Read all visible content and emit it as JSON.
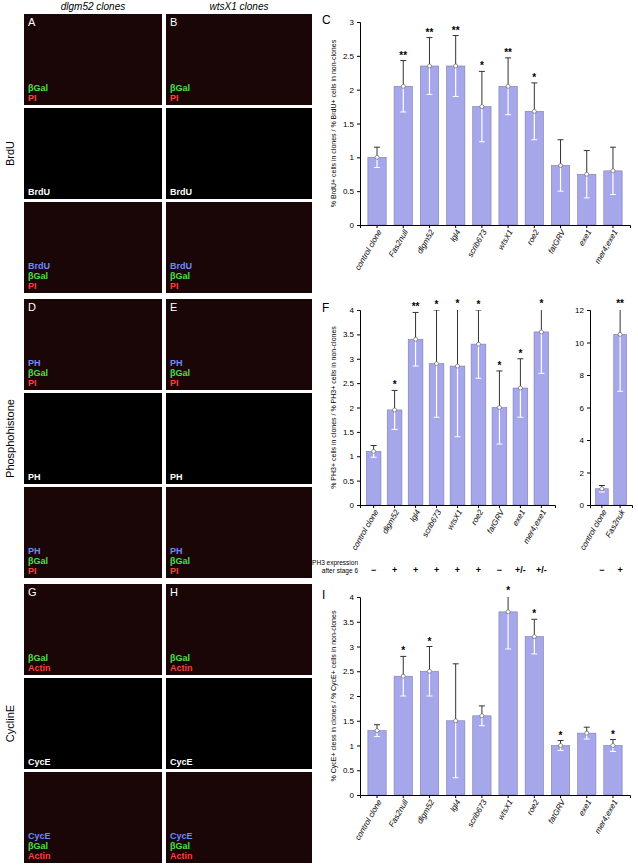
{
  "figure": {
    "column_titles": [
      "dlgm52 clones",
      "wtsX1 clones"
    ],
    "row_titles": [
      "BrdU",
      "Phosphohistone",
      "CyclinE"
    ],
    "panels": [
      {
        "letter": "A",
        "layers": [
          [
            {
              "text": "βGal",
              "color": "#4be04b"
            },
            {
              "text": "PI",
              "color": "#ff4040"
            }
          ],
          [
            {
              "text": "BrdU",
              "color": "#ffffff"
            }
          ],
          [
            {
              "text": "BrdU",
              "color": "#6f8bff"
            },
            {
              "text": "βGal",
              "color": "#4be04b"
            },
            {
              "text": "PI",
              "color": "#ff4040"
            }
          ]
        ]
      },
      {
        "letter": "B",
        "layers": [
          [
            {
              "text": "βGal",
              "color": "#4be04b"
            },
            {
              "text": "PI",
              "color": "#ff4040"
            }
          ],
          [
            {
              "text": "BrdU",
              "color": "#ffffff"
            }
          ],
          [
            {
              "text": "BrdU",
              "color": "#6f8bff"
            },
            {
              "text": "βGal",
              "color": "#4be04b"
            },
            {
              "text": "PI",
              "color": "#ff4040"
            }
          ]
        ]
      },
      {
        "letter": "D",
        "layers": [
          [
            {
              "text": "PH",
              "color": "#6f8bff"
            },
            {
              "text": "βGal",
              "color": "#4be04b"
            },
            {
              "text": "PI",
              "color": "#ff4040"
            }
          ],
          [
            {
              "text": "PH",
              "color": "#ffffff"
            }
          ],
          [
            {
              "text": "PH",
              "color": "#6f8bff"
            },
            {
              "text": "βGal",
              "color": "#4be04b"
            },
            {
              "text": "PI",
              "color": "#ff4040"
            }
          ]
        ]
      },
      {
        "letter": "E",
        "layers": [
          [
            {
              "text": "PH",
              "color": "#6f8bff"
            },
            {
              "text": "βGal",
              "color": "#4be04b"
            },
            {
              "text": "PI",
              "color": "#ff4040"
            }
          ],
          [
            {
              "text": "PH",
              "color": "#ffffff"
            }
          ],
          [
            {
              "text": "PH",
              "color": "#6f8bff"
            },
            {
              "text": "βGal",
              "color": "#4be04b"
            },
            {
              "text": "PI",
              "color": "#ff4040"
            }
          ]
        ]
      },
      {
        "letter": "G",
        "layers": [
          [
            {
              "text": "βGal",
              "color": "#4be04b"
            },
            {
              "text": "Actin",
              "color": "#ff4040"
            }
          ],
          [
            {
              "text": "CycE",
              "color": "#ffffff"
            }
          ],
          [
            {
              "text": "CycE",
              "color": "#6f8bff"
            },
            {
              "text": "βGal",
              "color": "#4be04b"
            },
            {
              "text": "Actin",
              "color": "#ff4040"
            }
          ]
        ]
      },
      {
        "letter": "H",
        "layers": [
          [
            {
              "text": "βGal",
              "color": "#4be04b"
            },
            {
              "text": "Actin",
              "color": "#ff4040"
            }
          ],
          [
            {
              "text": "CycE",
              "color": "#ffffff"
            }
          ],
          [
            {
              "text": "CycE",
              "color": "#6f8bff"
            },
            {
              "text": "βGal",
              "color": "#4be04b"
            },
            {
              "text": "Actin",
              "color": "#ff4040"
            }
          ]
        ]
      }
    ]
  },
  "chart_data": [
    {
      "type": "bar",
      "panel": "C",
      "y_label": "% BrdU+ cells in clones / % BrdU+ cells in non-clones",
      "categories": [
        "control clone",
        "Fas2null",
        "dlgm52",
        "lgl4",
        "scrib673",
        "wtsX1",
        "roe2",
        "fatGRV",
        "exe1",
        "mer4;exe1"
      ],
      "values": [
        1.0,
        2.05,
        2.35,
        2.35,
        1.75,
        2.05,
        1.68,
        0.88,
        0.75,
        0.8
      ],
      "errors": [
        0.15,
        0.38,
        0.42,
        0.45,
        0.52,
        0.42,
        0.42,
        0.38,
        0.35,
        0.35
      ],
      "significance": [
        null,
        "**",
        "**",
        "**",
        "*",
        "**",
        "*",
        null,
        null,
        null
      ],
      "color": "#a6a6ea",
      "ylim": [
        0,
        3
      ],
      "yticks": [
        0,
        0.5,
        1,
        1.5,
        2,
        2.5,
        3
      ],
      "grid": false
    },
    {
      "type": "bar",
      "panel": "F",
      "y_label": "% PH3+ cells in clones / % PH3+ cells in non-clones",
      "categories": [
        "control clone",
        "dlgm52",
        "lgl4",
        "scrib673",
        "wtsX1",
        "roe2",
        "fatGRV",
        "exe1",
        "mer4;exe1"
      ],
      "values": [
        1.1,
        1.95,
        3.4,
        2.9,
        2.85,
        3.3,
        2.0,
        2.4,
        3.55
      ],
      "errors": [
        0.12,
        0.4,
        0.55,
        1.1,
        1.45,
        0.7,
        0.75,
        0.6,
        0.85
      ],
      "significance": [
        null,
        "*",
        "**",
        "*",
        "*",
        "*",
        "*",
        "*",
        "*"
      ],
      "row_label": [
        "PH3 expression",
        "after stage 6"
      ],
      "row_values": [
        "−",
        "+",
        "+",
        "+",
        "+",
        "+",
        "−",
        "+/-",
        "+/-"
      ],
      "color": "#a6a6ea",
      "ylim": [
        0,
        4
      ],
      "yticks": [
        0,
        0.5,
        1,
        1.5,
        2,
        2.5,
        3,
        3.5,
        4
      ],
      "grid": false
    },
    {
      "type": "bar",
      "categories": [
        "control clone",
        "Fas2nuk"
      ],
      "values": [
        1.0,
        10.5
      ],
      "errors": [
        0.2,
        3.5
      ],
      "significance": [
        null,
        "**"
      ],
      "row_values": [
        "−",
        "+"
      ],
      "color": "#a6a6ea",
      "ylim": [
        0,
        12
      ],
      "yticks": [
        0,
        2,
        4,
        6,
        8,
        10,
        12
      ],
      "grid": false
    },
    {
      "type": "bar",
      "panel": "I",
      "y_label": "% CycE+ cless in clones / % CycE+ cells in non-clones",
      "categories": [
        "control clone",
        "Fas2null",
        "dlgm52",
        "lgl4",
        "scrib673",
        "wtsX1",
        "roe2",
        "fatGRV",
        "exe1",
        "mer4;exe1"
      ],
      "values": [
        1.3,
        2.4,
        2.5,
        1.5,
        1.6,
        3.7,
        3.2,
        1.0,
        1.25,
        1.0
      ],
      "errors": [
        0.12,
        0.4,
        0.5,
        1.15,
        0.2,
        0.75,
        0.35,
        0.1,
        0.12,
        0.12
      ],
      "significance": [
        null,
        "*",
        "*",
        null,
        null,
        "*",
        "*",
        "*",
        null,
        "*"
      ],
      "color": "#a6a6ea",
      "ylim": [
        0,
        4
      ],
      "yticks": [
        0,
        0.5,
        1,
        1.5,
        2,
        2.5,
        3,
        3.5,
        4
      ],
      "grid": false
    }
  ]
}
